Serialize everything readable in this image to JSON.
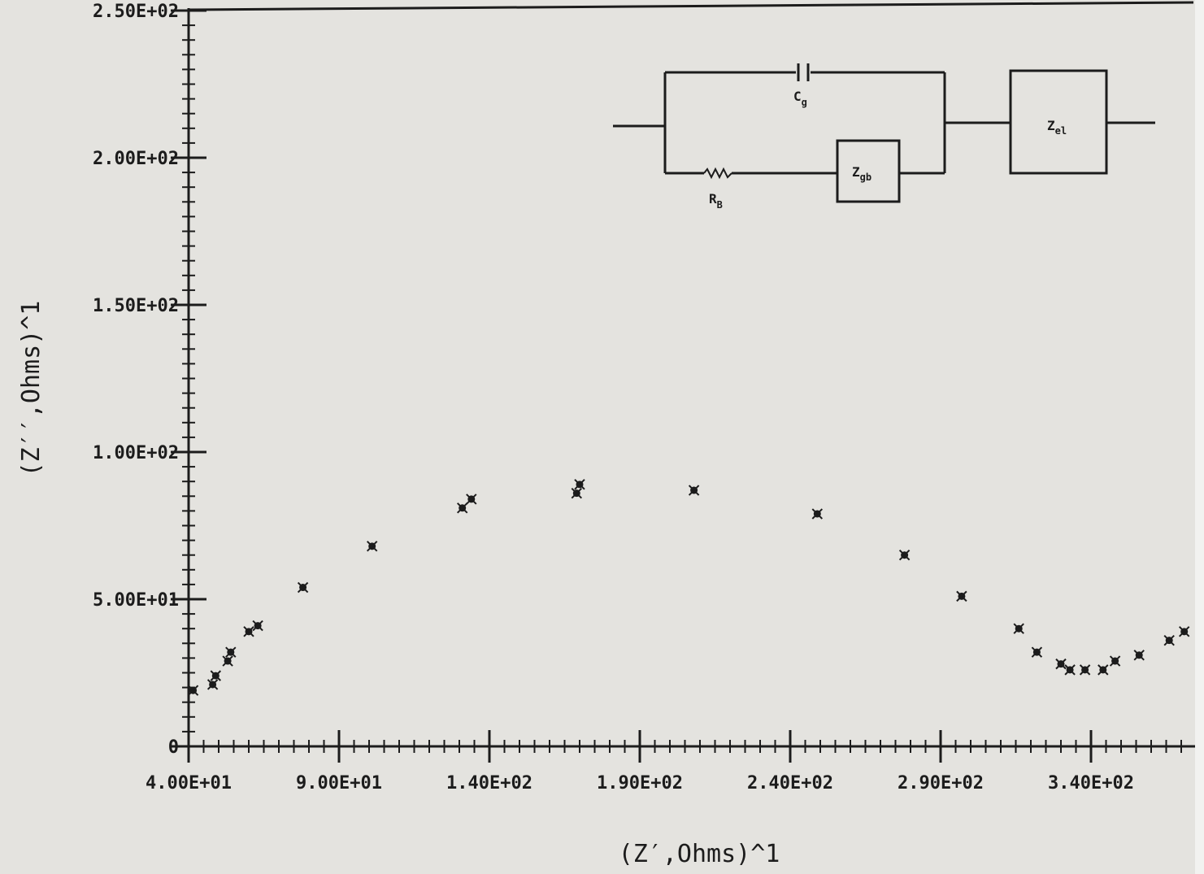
{
  "chart_data": {
    "type": "scatter",
    "title": "",
    "xlabel": "(Z′,Ohms)^1",
    "ylabel": "(Z′′,Ohms)^1",
    "xlim": [
      40,
      372
    ],
    "ylim": [
      0,
      250
    ],
    "x_ticks": [
      40,
      90,
      140,
      190,
      240,
      290,
      340
    ],
    "x_tick_labels": [
      "4.00E+01",
      "9.00E+01",
      "1.40E+02",
      "1.90E+02",
      "2.40E+02",
      "2.90E+02",
      "3.40E+02"
    ],
    "y_ticks": [
      0,
      50,
      100,
      150,
      200,
      250
    ],
    "y_tick_labels": [
      "0",
      "5.00E+01",
      "1.00E+02",
      "1.50E+02",
      "2.00E+02",
      "2.50E+02"
    ],
    "grid": false,
    "series": [
      {
        "marker": "star",
        "points": [
          [
            41.5,
            19
          ],
          [
            48,
            21
          ],
          [
            49,
            24
          ],
          [
            53,
            29
          ],
          [
            54,
            32
          ],
          [
            60,
            39
          ],
          [
            63,
            41
          ],
          [
            78,
            54
          ],
          [
            101,
            68
          ],
          [
            131,
            81
          ],
          [
            134,
            84
          ],
          [
            169,
            86
          ],
          [
            170,
            89
          ],
          [
            208,
            87
          ],
          [
            249,
            79
          ],
          [
            278,
            65
          ],
          [
            297,
            51
          ],
          [
            316,
            40
          ],
          [
            322,
            32
          ],
          [
            330,
            28
          ],
          [
            333,
            26
          ],
          [
            338,
            26
          ],
          [
            344,
            26
          ],
          [
            348,
            29
          ],
          [
            356,
            31
          ],
          [
            366,
            36
          ],
          [
            371,
            39
          ]
        ]
      }
    ],
    "inset_circuit": {
      "labels": {
        "cap": "C",
        "cap_sub": "g",
        "res": "R",
        "res_sub": "B",
        "gb": "Z",
        "gb_sub": "gb",
        "el": "Z",
        "el_sub": "el"
      }
    }
  }
}
